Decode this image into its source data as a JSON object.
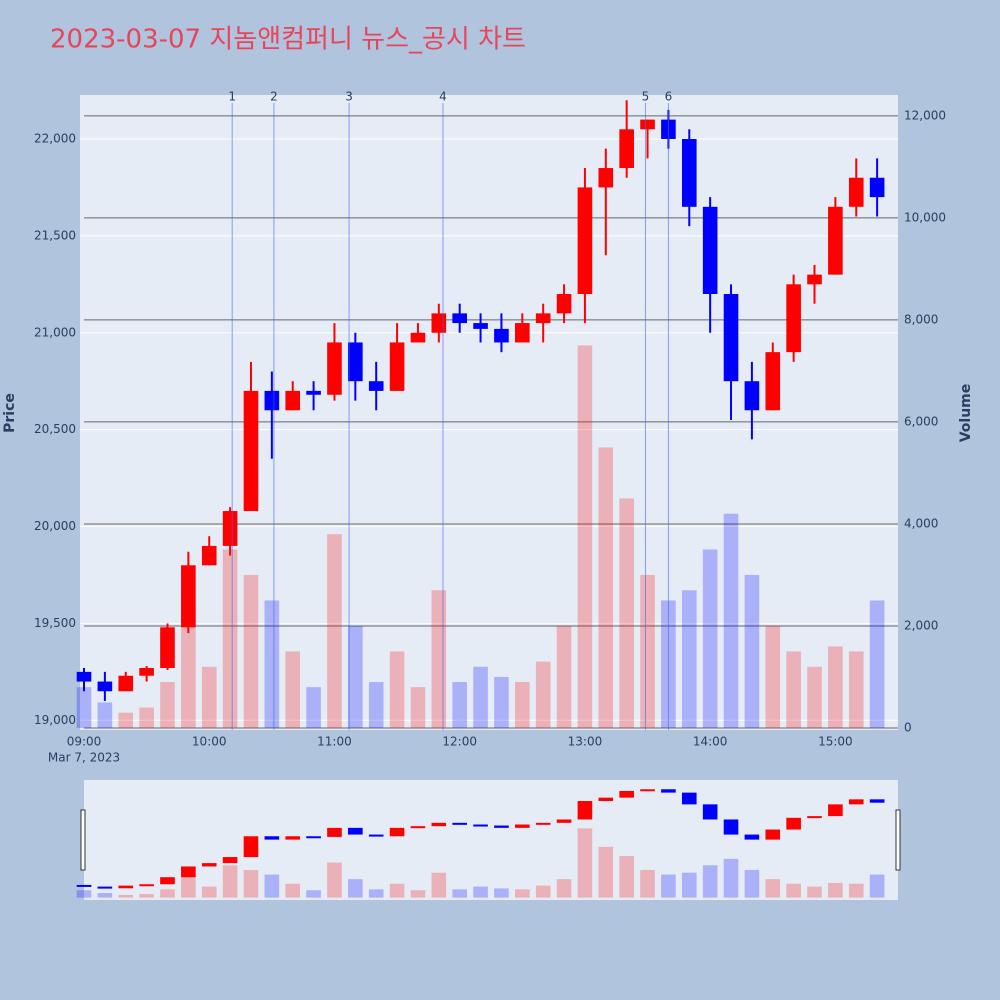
{
  "chart_data": {
    "type": "candlestick",
    "title": "2023-03-07 지놈앤컴퍼니 뉴스_공시 차트",
    "y_label": "Price",
    "y2_label": "Volume",
    "x_date_label": "Mar 7, 2023",
    "increasing_color": "#ff0000",
    "decreasing_color": "#0000ff",
    "x": [
      "09:00",
      "09:10",
      "09:20",
      "09:30",
      "09:40",
      "09:50",
      "10:00",
      "10:10",
      "10:20",
      "10:30",
      "10:40",
      "10:50",
      "11:00",
      "11:10",
      "11:20",
      "11:30",
      "11:40",
      "11:50",
      "12:00",
      "12:10",
      "12:20",
      "12:30",
      "12:40",
      "12:50",
      "13:00",
      "13:10",
      "13:20",
      "13:30",
      "13:40",
      "13:50",
      "14:00",
      "14:10",
      "14:20",
      "14:30",
      "14:40",
      "14:50",
      "15:00",
      "15:10",
      "15:20"
    ],
    "open": [
      19250,
      19200,
      19150,
      19230,
      19270,
      19480,
      19800,
      19900,
      20080,
      20700,
      20600,
      20700,
      20680,
      20950,
      20750,
      20700,
      20950,
      21000,
      21100,
      21050,
      21020,
      20950,
      21050,
      21100,
      21200,
      21750,
      21850,
      22050,
      22100,
      22000,
      21650,
      21200,
      20750,
      20600,
      20900,
      21250,
      21300,
      21650,
      21800
    ],
    "high": [
      19270,
      19250,
      19250,
      19280,
      19500,
      19870,
      19950,
      20100,
      20850,
      20800,
      20750,
      20750,
      21050,
      21000,
      20850,
      21050,
      21050,
      21150,
      21150,
      21100,
      21100,
      21100,
      21150,
      21250,
      21850,
      21950,
      22200,
      22100,
      22150,
      22050,
      21700,
      21250,
      20850,
      20950,
      21300,
      21350,
      21700,
      21900,
      21900
    ],
    "low": [
      19150,
      19100,
      19150,
      19200,
      19260,
      19450,
      19800,
      19850,
      20080,
      20350,
      20600,
      20600,
      20650,
      20650,
      20600,
      20700,
      20950,
      20950,
      21000,
      20950,
      20900,
      20950,
      20950,
      21050,
      21050,
      21400,
      21800,
      21900,
      21950,
      21550,
      21000,
      20550,
      20450,
      20600,
      20850,
      21150,
      21300,
      21600,
      21600
    ],
    "close": [
      19200,
      19150,
      19230,
      19270,
      19480,
      19800,
      19900,
      20080,
      20700,
      20600,
      20700,
      20680,
      20950,
      20750,
      20700,
      20950,
      21000,
      21100,
      21050,
      21020,
      20950,
      21050,
      21100,
      21200,
      21750,
      21850,
      22050,
      22100,
      22000,
      21650,
      21200,
      20750,
      20600,
      20900,
      21250,
      21300,
      21650,
      21800,
      21700
    ],
    "volume": [
      800,
      500,
      300,
      400,
      900,
      2500,
      1200,
      3500,
      3000,
      2500,
      1500,
      800,
      3800,
      2000,
      900,
      1500,
      800,
      2700,
      900,
      1200,
      1000,
      900,
      1300,
      2000,
      7500,
      5500,
      4500,
      3000,
      2500,
      2700,
      3500,
      4200,
      3000,
      2000,
      1500,
      1200,
      1600,
      1500,
      2500
    ],
    "xlim": [
      "09:00",
      "15:30"
    ],
    "xticks": [
      "09:00",
      "10:00",
      "11:00",
      "12:00",
      "13:00",
      "14:00",
      "15:00"
    ],
    "ylim": [
      18950,
      22227
    ],
    "yticks": [
      {
        "value": 19000,
        "label": "19,000"
      },
      {
        "value": 19500,
        "label": "19,500"
      },
      {
        "value": 20000,
        "label": "20,000"
      },
      {
        "value": 20500,
        "label": "20,500"
      },
      {
        "value": 21000,
        "label": "21,000"
      },
      {
        "value": 21500,
        "label": "21,500"
      },
      {
        "value": 22000,
        "label": "22,000"
      }
    ],
    "y2lim": [
      -40,
      12410
    ],
    "y2ticks": [
      0,
      {
        "value": 2000,
        "label": "2,000"
      },
      {
        "value": 4000,
        "label": "4,000"
      },
      {
        "value": 6000,
        "label": "6,000"
      },
      {
        "value": 8000,
        "label": "8,000"
      },
      {
        "value": 10000,
        "label": "10,000"
      },
      {
        "value": 12000,
        "label": "12,000"
      }
    ],
    "annotations": [
      {
        "label": "1",
        "x": "10:11"
      },
      {
        "label": "2",
        "x": "10:31"
      },
      {
        "label": "3",
        "x": "11:07"
      },
      {
        "label": "4",
        "x": "11:52"
      },
      {
        "label": "5",
        "x": "13:29"
      },
      {
        "label": "6",
        "x": "13:40"
      }
    ],
    "range_slider": true
  }
}
